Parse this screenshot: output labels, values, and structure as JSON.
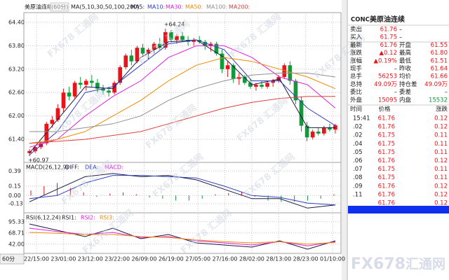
{
  "main": {
    "title": "美原油连续",
    "period": "(60分)",
    "ma_label": "MA(5,10,30,50,100,200)",
    "ylim": [
      60.81,
      64.65
    ],
    "yticks": [
      {
        "value": 64.4,
        "label": "64.40"
      },
      {
        "value": 63.8,
        "label": "63.80"
      },
      {
        "value": 63.2,
        "label": "63.20"
      },
      {
        "value": 62.6,
        "label": "62.60"
      },
      {
        "value": 62,
        "label": "62.00"
      },
      {
        "value": 61.4,
        "label": "61.40"
      }
    ],
    "up_color": "#e8141a",
    "down_color": "#109a3a",
    "candles": [
      [
        61.05,
        61.15,
        60.97,
        61.1
      ],
      [
        61.1,
        61.25,
        61.05,
        61.2
      ],
      [
        61.2,
        61.35,
        61.15,
        61.3
      ],
      [
        61.3,
        61.85,
        61.25,
        61.8
      ],
      [
        61.8,
        62,
        61.7,
        61.9
      ],
      [
        61.9,
        62.3,
        61.85,
        62.2
      ],
      [
        62.2,
        62.7,
        62.1,
        62.6
      ],
      [
        62.6,
        62.75,
        62.4,
        62.5
      ],
      [
        62.5,
        62.9,
        62.45,
        62.85
      ],
      [
        62.85,
        63,
        62.7,
        62.8
      ],
      [
        62.8,
        62.95,
        62.65,
        62.9
      ],
      [
        62.9,
        63.05,
        62.75,
        62.85
      ],
      [
        62.85,
        62.95,
        62.6,
        62.7
      ],
      [
        62.7,
        62.8,
        62.55,
        62.65
      ],
      [
        62.65,
        62.75,
        62.5,
        62.6
      ],
      [
        62.6,
        62.9,
        62.55,
        62.85
      ],
      [
        62.85,
        63.3,
        62.8,
        63.25
      ],
      [
        63.25,
        63.6,
        63.2,
        63.55
      ],
      [
        63.55,
        63.7,
        63.3,
        63.4
      ],
      [
        63.4,
        63.8,
        63.35,
        63.75
      ],
      [
        63.75,
        63.85,
        63.55,
        63.6
      ],
      [
        63.6,
        63.75,
        63.45,
        63.7
      ],
      [
        63.7,
        63.9,
        63.6,
        63.85
      ],
      [
        63.85,
        64,
        63.7,
        63.75
      ],
      [
        63.75,
        64.24,
        63.7,
        64.15
      ],
      [
        64.15,
        64.2,
        63.9,
        63.95
      ],
      [
        63.95,
        64.1,
        63.85,
        64.05
      ],
      [
        64.05,
        64.15,
        63.9,
        63.95
      ],
      [
        63.95,
        64.05,
        63.8,
        63.9
      ],
      [
        63.9,
        64,
        63.8,
        63.95
      ],
      [
        63.95,
        64.05,
        63.85,
        63.9
      ],
      [
        63.9,
        63.95,
        63.7,
        63.8
      ],
      [
        63.8,
        63.9,
        63.65,
        63.85
      ],
      [
        63.85,
        63.9,
        63.55,
        63.6
      ],
      [
        63.6,
        63.7,
        63.1,
        63.2
      ],
      [
        63.2,
        63.4,
        63,
        63.3
      ],
      [
        63.3,
        63.35,
        62.85,
        62.95
      ],
      [
        62.95,
        63.1,
        62.8,
        63
      ],
      [
        63,
        63.05,
        62.8,
        62.85
      ],
      [
        62.85,
        62.95,
        62.7,
        62.75
      ],
      [
        62.75,
        62.85,
        62.65,
        62.8
      ],
      [
        62.8,
        62.9,
        62.7,
        62.75
      ],
      [
        62.75,
        62.9,
        62.7,
        62.85
      ],
      [
        62.85,
        62.95,
        62.75,
        62.9
      ],
      [
        62.9,
        63.05,
        62.85,
        63
      ],
      [
        63,
        63.35,
        62.95,
        63.3
      ],
      [
        63.3,
        63.4,
        62.8,
        62.9
      ],
      [
        62.9,
        62.95,
        62.3,
        62.4
      ],
      [
        62.4,
        62.5,
        61.6,
        61.75
      ],
      [
        61.75,
        61.85,
        61.35,
        61.45
      ],
      [
        61.45,
        61.65,
        61.4,
        61.6
      ],
      [
        61.6,
        61.7,
        61.5,
        61.55
      ],
      [
        61.55,
        61.75,
        61.5,
        61.7
      ],
      [
        61.7,
        61.8,
        61.6,
        61.65
      ],
      [
        61.65,
        61.8,
        61.55,
        61.76
      ]
    ],
    "ma_lines": [
      {
        "name": "MA5:",
        "color": "#1a1a40",
        "values": [
          61.05,
          61.9,
          62.75,
          62.7,
          63.5,
          63.9,
          63.95,
          63.5,
          62.8,
          62.95,
          61.7,
          61.7
        ]
      },
      {
        "name": "MA10:",
        "color": "#3040c0",
        "values": [
          61,
          61.6,
          62.6,
          62.75,
          63.3,
          63.85,
          63.95,
          63.7,
          62.9,
          62.9,
          62.2,
          61.75
        ]
      },
      {
        "name": "MA30:",
        "color": "#e020e0",
        "values": [
          61.2,
          61.4,
          62,
          62.5,
          62.9,
          63.5,
          63.8,
          63.8,
          63.5,
          63,
          62.8,
          62.2
        ]
      },
      {
        "name": "MA50:",
        "color": "#f08a00",
        "values": [
          61.3,
          61.4,
          61.6,
          62,
          62.4,
          62.9,
          63.3,
          63.5,
          63.4,
          63.2,
          63,
          62.7
        ]
      },
      {
        "name": "MA100:",
        "color": "#909090",
        "values": [
          61.6,
          61.6,
          61.7,
          61.8,
          62,
          62.4,
          62.7,
          62.9,
          63.05,
          63.1,
          63.1,
          63
        ]
      },
      {
        "name": "MA200:",
        "color": "#e04040",
        "values": [
          61.3,
          61.35,
          61.4,
          61.5,
          61.6,
          61.8,
          62,
          62.2,
          62.35,
          62.45,
          62.5,
          62.5
        ]
      }
    ],
    "annotations": [
      {
        "value": 64.24,
        "label": "+64.24"
      },
      {
        "value": 60.97,
        "label": "+60.97"
      }
    ]
  },
  "macd": {
    "title": "MACD(26,12,9)",
    "ylim": [
      -0.23,
      0.46
    ],
    "yticks": [
      0.39,
      0.15,
      {
        "value": 0,
        "label": "0.00"
      },
      -0.13
    ],
    "lines": [
      {
        "name": "DIFF:",
        "color": "#1a1a40",
        "values": [
          -0.1,
          0.1,
          0.3,
          0.35,
          0.3,
          0.32,
          0.25,
          0.1,
          -0.05,
          -0.05,
          -0.2,
          -0.15
        ]
      },
      {
        "name": "DEA:",
        "color": "#3040c0",
        "values": [
          -0.05,
          0,
          0.2,
          0.32,
          0.32,
          0.3,
          0.28,
          0.15,
          0,
          -0.03,
          -0.12,
          -0.15
        ]
      }
    ],
    "bar_name": "MACD:",
    "bar_color": "#e020e0",
    "up_color": "#e8141a",
    "down_color": "#109a3a",
    "bars": [
      0.08,
      0.15,
      0.2,
      0.12,
      0.05,
      -0.02,
      0.03,
      0.05,
      0.02,
      -0.03,
      -0.05,
      -0.08,
      -0.08,
      -0.05,
      0.02,
      0.04,
      0.06,
      -0.02,
      -0.08,
      -0.1,
      -0.1,
      -0.08,
      -0.05,
      0.02
    ]
  },
  "rsi": {
    "title": "RSI(6,12,24)",
    "ylim": [
      20,
      105
    ],
    "yticks": [
      95.33,
      68.71,
      {
        "value": 42,
        "label": "42.00"
      }
    ],
    "lines": [
      {
        "name": "RSI1:",
        "color": "#1a1a40",
        "values": [
          90,
          75,
          60,
          80,
          55,
          65,
          45,
          40,
          35,
          50,
          30,
          50
        ]
      },
      {
        "name": "RSI2:",
        "color": "#e020e0",
        "values": [
          80,
          72,
          65,
          70,
          58,
          60,
          50,
          45,
          40,
          48,
          38,
          48
        ]
      },
      {
        "name": "RSI3:",
        "color": "#f08a00",
        "values": [
          70,
          68,
          65,
          65,
          60,
          58,
          52,
          48,
          45,
          48,
          42,
          46
        ]
      }
    ]
  },
  "xlabels": [
    "22/15:00",
    "23/01:00",
    "23/12:00",
    "23/22:00",
    "26/09:00",
    "26/19:00",
    "27/05:00",
    "27/16:00",
    "28/02:00",
    "28/13:00",
    "28/23:00",
    "01/10:00"
  ],
  "period_button": "60分",
  "watermark": "FX678 汇通网",
  "logo": [
    "FX678",
    "汇通网"
  ],
  "quote": {
    "symbol": "CONC",
    "name": "美原油连续",
    "rows": [
      [
        "卖出",
        "61.76",
        "–",
        ""
      ],
      [
        "买入",
        "61.75",
        "–",
        ""
      ],
      [
        "最新",
        "61.76",
        "开盘",
        "61.55"
      ],
      [
        "涨跌",
        "▲0.12",
        "最高",
        "61.80"
      ],
      [
        "涨幅",
        "▲0.19%",
        "最低",
        "61.51"
      ],
      [
        "现手",
        "–",
        "昨收",
        "61.64"
      ],
      [
        "总手",
        "56253",
        "均价",
        "61.66"
      ],
      [
        "总持",
        "49.09万",
        "持仓差",
        "49.09万"
      ],
      [
        "委比",
        "–",
        "委差",
        "–"
      ],
      [
        "外盘",
        "15095",
        "内盘",
        "15532"
      ]
    ]
  },
  "ticks": {
    "header": [
      "时间",
      "价格",
      "涨跌"
    ],
    "rows": [
      [
        "15:41",
        "61.76",
        "0.12"
      ],
      [
        ".02",
        "61.76",
        "0.12"
      ],
      [
        ".02",
        "61.75",
        "0.11"
      ],
      [
        ".04",
        "61.75",
        "0.11"
      ],
      [
        ".05",
        "61.75",
        "0.11"
      ],
      [
        ".06",
        "61.76",
        "0.12"
      ],
      [
        ".07",
        "61.75",
        "0.11"
      ],
      [
        ".08",
        "61.75",
        "0.11"
      ],
      [
        ".09",
        "61.76",
        "0.12"
      ],
      [
        ".11",
        "61.76",
        "0.12"
      ],
      [
        ".12",
        "61.76",
        "0.12"
      ]
    ]
  }
}
